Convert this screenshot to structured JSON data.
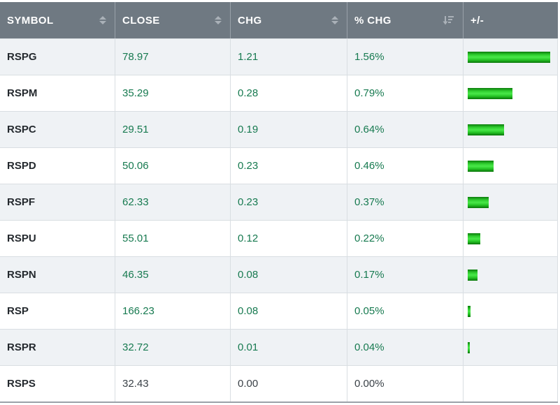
{
  "table": {
    "columns": [
      {
        "id": "symbol",
        "label": "SYMBOL",
        "sort_icon": "sort-toggle"
      },
      {
        "id": "close",
        "label": "CLOSE",
        "sort_icon": "sort-toggle"
      },
      {
        "id": "chg",
        "label": "CHG",
        "sort_icon": "sort-toggle"
      },
      {
        "id": "pct-chg",
        "label": "% CHG",
        "sort_icon": "sort-desc"
      },
      {
        "id": "bar",
        "label": "+/-",
        "sort_icon": null
      }
    ],
    "rows": [
      {
        "symbol": "RSPG",
        "close": "78.97",
        "chg": "1.21",
        "pct_chg": "1.56%",
        "pct_value": 1.56
      },
      {
        "symbol": "RSPM",
        "close": "35.29",
        "chg": "0.28",
        "pct_chg": "0.79%",
        "pct_value": 0.79
      },
      {
        "symbol": "RSPC",
        "close": "29.51",
        "chg": "0.19",
        "pct_chg": "0.64%",
        "pct_value": 0.64
      },
      {
        "symbol": "RSPD",
        "close": "50.06",
        "chg": "0.23",
        "pct_chg": "0.46%",
        "pct_value": 0.46
      },
      {
        "symbol": "RSPF",
        "close": "62.33",
        "chg": "0.23",
        "pct_chg": "0.37%",
        "pct_value": 0.37
      },
      {
        "symbol": "RSPU",
        "close": "55.01",
        "chg": "0.12",
        "pct_chg": "0.22%",
        "pct_value": 0.22
      },
      {
        "symbol": "RSPN",
        "close": "46.35",
        "chg": "0.08",
        "pct_chg": "0.17%",
        "pct_value": 0.17
      },
      {
        "symbol": "RSP",
        "close": "166.23",
        "chg": "0.08",
        "pct_chg": "0.05%",
        "pct_value": 0.05
      },
      {
        "symbol": "RSPR",
        "close": "32.72",
        "chg": "0.01",
        "pct_chg": "0.04%",
        "pct_value": 0.04
      },
      {
        "symbol": "RSPS",
        "close": "32.43",
        "chg": "0.00",
        "pct_chg": "0.00%",
        "pct_value": 0.0
      }
    ]
  },
  "colors": {
    "header_bg": "#6f7982",
    "stripe_row_bg": "#eff2f5",
    "positive_text": "#177a50",
    "neutral_text": "#3a4147",
    "bar_green_bright": "#4ae84a",
    "bar_green_dark": "#0b7c0b",
    "sort_icon": "#aab1b8"
  }
}
